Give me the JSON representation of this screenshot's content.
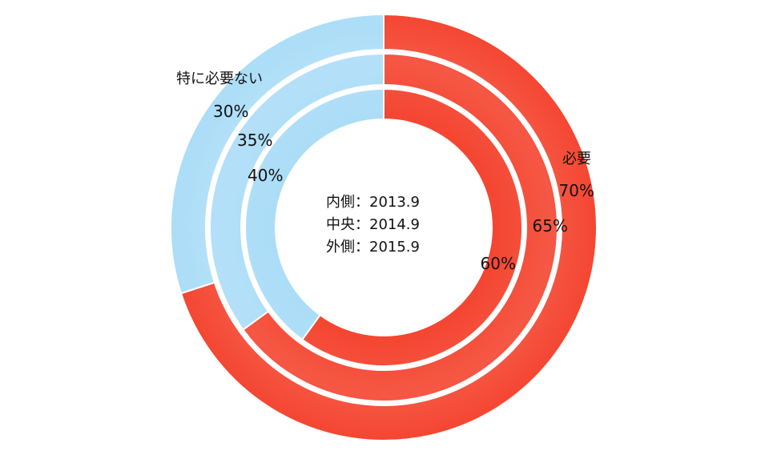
{
  "chart_data": {
    "type": "pie",
    "subtype": "multi-ring-doughnut",
    "categories": [
      "必要",
      "特に必要ない"
    ],
    "colors": {
      "必要": "#F44530",
      "特に必要ない": "#ABDDF7"
    },
    "series": [
      {
        "name": "内側：2013.9",
        "values": [
          60,
          40
        ],
        "labels": [
          "60%",
          "40%"
        ]
      },
      {
        "name": "中央：2014.9",
        "values": [
          65,
          35
        ],
        "labels": [
          "65%",
          "35%"
        ]
      },
      {
        "name": "外側：2015.9",
        "values": [
          70,
          30
        ],
        "labels": [
          "70%",
          "30%"
        ]
      }
    ],
    "center_text": [
      "内側：2013.9",
      "中央：2014.9",
      "外側：2015.9"
    ],
    "start_angle": "12 o'clock",
    "direction": "clockwise"
  }
}
